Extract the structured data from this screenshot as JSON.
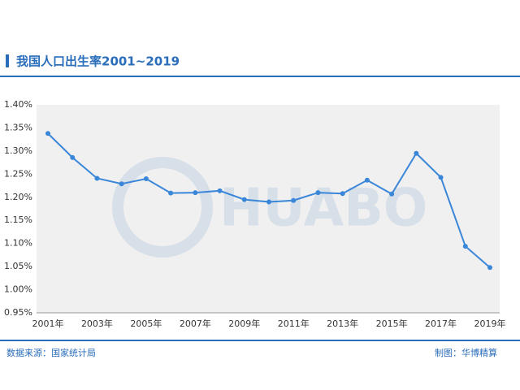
{
  "chart_data": {
    "type": "line",
    "title": "我国人口出生率2001~2019",
    "watermark": "HUABO",
    "source": "数据来源：国家统计局",
    "credit": "制图：华博精算",
    "categories": [
      "2001年",
      null,
      "2003年",
      null,
      "2005年",
      null,
      "2007年",
      null,
      "2009年",
      null,
      "2011年",
      null,
      "2013年",
      null,
      "2015年",
      null,
      "2017年",
      null,
      "2019年"
    ],
    "series": [
      {
        "color": "#3a86d8",
        "values": [
          1.338,
          1.286,
          1.241,
          1.229,
          1.24,
          1.209,
          1.21,
          1.214,
          1.195,
          1.19,
          1.193,
          1.21,
          1.208,
          1.237,
          1.207,
          1.295,
          1.243,
          1.094,
          1.048
        ]
      }
    ],
    "ylim": [
      0.95,
      1.4
    ],
    "yticks": [
      {
        "value": 0.95,
        "label": "0.95%"
      },
      {
        "value": 1.0,
        "label": "1.00%"
      },
      {
        "value": 1.05,
        "label": "1.05%"
      },
      {
        "value": 1.1,
        "label": "1.10%"
      },
      {
        "value": 1.15,
        "label": "1.15%"
      },
      {
        "value": 1.2,
        "label": "1.20%"
      },
      {
        "value": 1.25,
        "label": "1.25%"
      },
      {
        "value": 1.3,
        "label": "1.30%"
      },
      {
        "value": 1.35,
        "label": "1.35%"
      },
      {
        "value": 1.4,
        "label": "1.40%"
      }
    ],
    "grid": false
  }
}
